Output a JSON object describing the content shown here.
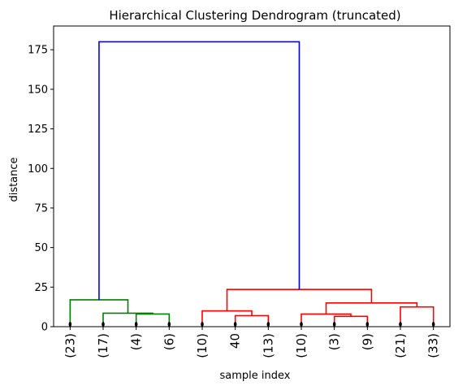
{
  "chart_data": {
    "type": "dendrogram",
    "title": "Hierarchical Clustering Dendrogram (truncated)",
    "xlabel": "sample index",
    "ylabel": "distance",
    "ylim": [
      0,
      190
    ],
    "yticks": [
      0,
      25,
      50,
      75,
      100,
      125,
      150,
      175
    ],
    "leaves": [
      "(23)",
      "(17)",
      "(4)",
      "(6)",
      "(10)",
      "40",
      "(13)",
      "(10)",
      "(3)",
      "(9)",
      "(21)",
      "(33)"
    ],
    "merges": [
      {
        "left": 2,
        "right": 3,
        "height": 8.0,
        "color": "#008000"
      },
      {
        "left": 1,
        "right": 12,
        "height": 8.5,
        "color": "#008000"
      },
      {
        "left": 0,
        "right": 13,
        "height": 17.0,
        "color": "#008000"
      },
      {
        "left": 5,
        "right": 6,
        "height": 7.0,
        "color": "#ff0000"
      },
      {
        "left": 4,
        "right": 15,
        "height": 10.0,
        "color": "#ff0000"
      },
      {
        "left": 8,
        "right": 9,
        "height": 6.5,
        "color": "#ff0000"
      },
      {
        "left": 7,
        "right": 17,
        "height": 8.0,
        "color": "#ff0000"
      },
      {
        "left": 10,
        "right": 11,
        "height": 12.5,
        "color": "#ff0000"
      },
      {
        "left": 18,
        "right": 19,
        "height": 15.0,
        "color": "#ff0000"
      },
      {
        "left": 16,
        "right": 20,
        "height": 23.5,
        "color": "#ff0000"
      },
      {
        "left": 14,
        "right": 21,
        "height": 180.0,
        "color": "#0000ff"
      }
    ],
    "leaf_marker_color": "#000000",
    "grid": false,
    "legend": "none"
  }
}
